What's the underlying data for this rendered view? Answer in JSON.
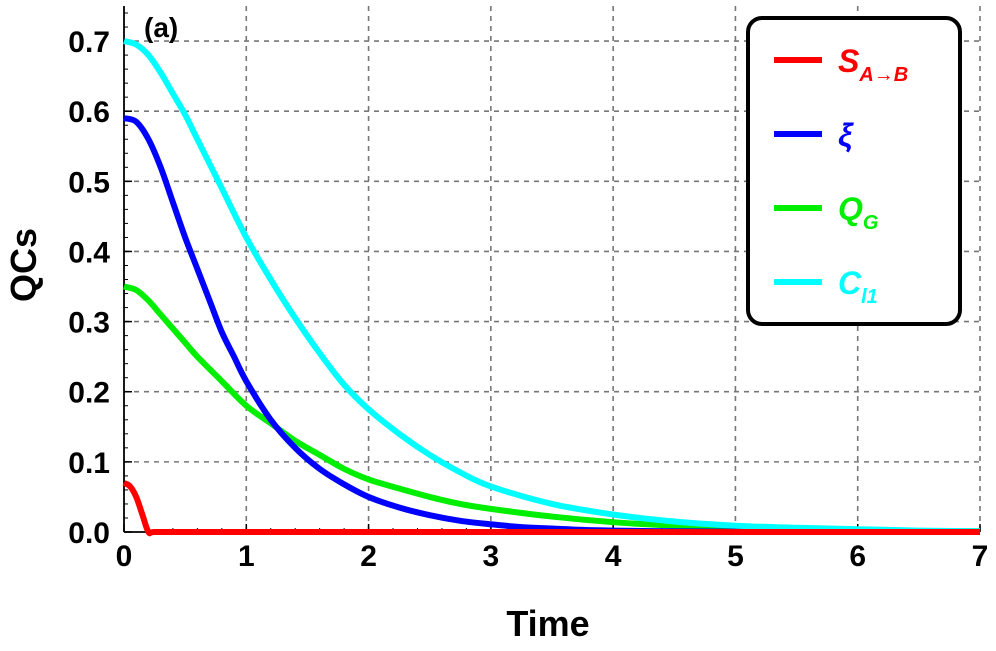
{
  "chart_data": {
    "type": "line",
    "panel_label": "(a)",
    "xlabel": "Time",
    "ylabel": "QCs",
    "xlim": [
      0,
      7
    ],
    "ylim": [
      0,
      0.75
    ],
    "xticks": [
      "0",
      "1",
      "2",
      "3",
      "4",
      "5",
      "6",
      "7"
    ],
    "yticks": [
      "0.0",
      "0.1",
      "0.2",
      "0.3",
      "0.4",
      "0.5",
      "0.6",
      "0.7"
    ],
    "grid": true,
    "legend_position": "top-right",
    "series": [
      {
        "name": "S_{A→B}",
        "legend_main": "S",
        "legend_sub": "A→B",
        "color": "#ff0000",
        "x": [
          0,
          0.05,
          0.1,
          0.15,
          0.2,
          0.25,
          0.5,
          1,
          2,
          3,
          4,
          5,
          6,
          7
        ],
        "y": [
          0.07,
          0.065,
          0.05,
          0.025,
          0.0,
          0.0,
          0.0,
          0.0,
          0.0,
          0.0,
          0.0,
          0.0,
          0.0,
          0.0
        ]
      },
      {
        "name": "ξ",
        "legend_main": "ξ",
        "legend_sub": "",
        "color": "#0000ff",
        "x": [
          0,
          0.1,
          0.2,
          0.3,
          0.4,
          0.5,
          0.6,
          0.7,
          0.8,
          0.9,
          1.0,
          1.2,
          1.4,
          1.6,
          1.8,
          2.0,
          2.25,
          2.5,
          2.75,
          3.0,
          3.25,
          3.5,
          3.75,
          4.0,
          4.5,
          5.0,
          5.5,
          6.0,
          7.0
        ],
        "y": [
          0.59,
          0.585,
          0.56,
          0.52,
          0.47,
          0.42,
          0.375,
          0.33,
          0.285,
          0.25,
          0.215,
          0.16,
          0.12,
          0.09,
          0.068,
          0.05,
          0.035,
          0.024,
          0.016,
          0.011,
          0.007,
          0.005,
          0.003,
          0.002,
          0.001,
          0.0005,
          0.0002,
          0.0001,
          0.0
        ]
      },
      {
        "name": "Q_G",
        "legend_main": "Q",
        "legend_sub": "G",
        "color": "#00ee00",
        "x": [
          0,
          0.1,
          0.2,
          0.3,
          0.4,
          0.5,
          0.6,
          0.8,
          1.0,
          1.2,
          1.4,
          1.6,
          1.8,
          2.0,
          2.25,
          2.5,
          2.75,
          3.0,
          3.5,
          4.0,
          4.5,
          5.0,
          5.5,
          6.0,
          6.5,
          7.0
        ],
        "y": [
          0.35,
          0.345,
          0.33,
          0.31,
          0.29,
          0.27,
          0.25,
          0.215,
          0.18,
          0.155,
          0.13,
          0.11,
          0.09,
          0.075,
          0.062,
          0.05,
          0.04,
          0.033,
          0.022,
          0.014,
          0.009,
          0.006,
          0.004,
          0.0025,
          0.0015,
          0.001
        ]
      },
      {
        "name": "C_l1",
        "legend_main": "C",
        "legend_sub": "l1",
        "color": "#00ffff",
        "x": [
          0,
          0.1,
          0.2,
          0.3,
          0.4,
          0.5,
          0.6,
          0.8,
          1.0,
          1.2,
          1.4,
          1.6,
          1.8,
          2.0,
          2.25,
          2.5,
          2.75,
          3.0,
          3.5,
          4.0,
          4.5,
          5.0,
          5.5,
          6.0,
          6.5,
          7.0
        ],
        "y": [
          0.7,
          0.695,
          0.68,
          0.655,
          0.625,
          0.595,
          0.56,
          0.49,
          0.42,
          0.36,
          0.305,
          0.255,
          0.21,
          0.175,
          0.14,
          0.11,
          0.085,
          0.065,
          0.04,
          0.025,
          0.015,
          0.009,
          0.006,
          0.004,
          0.002,
          0.001
        ]
      }
    ]
  }
}
